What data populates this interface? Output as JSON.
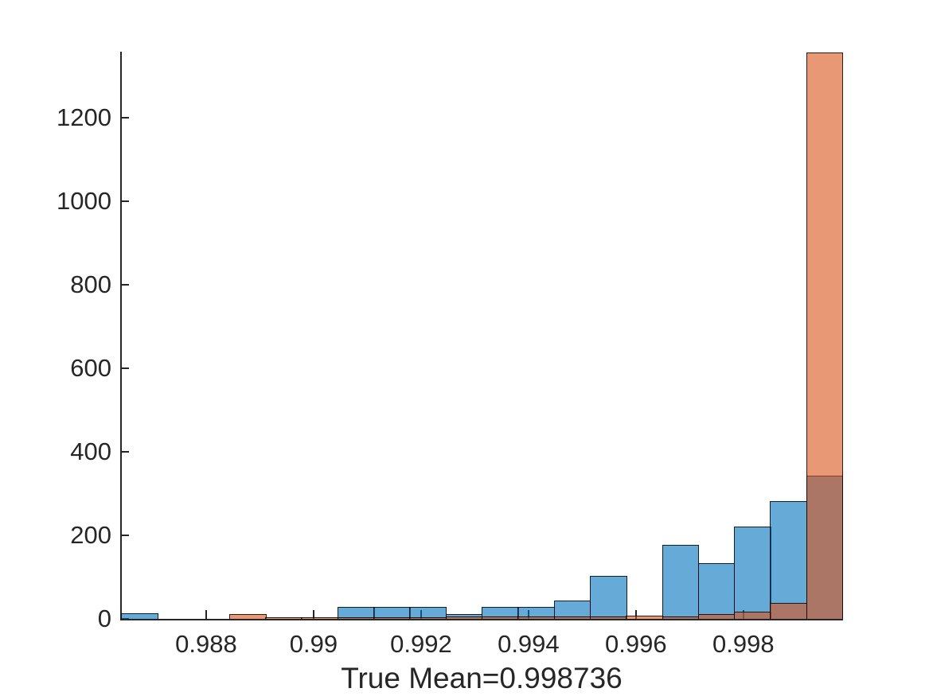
{
  "figure": {
    "background": "#ffffff",
    "axis_color": "#262626",
    "bar_edge_color": "rgba(0,0,0,0.82)"
  },
  "chart_data": {
    "type": "histogram",
    "subtype": "two overlaid semi-transparent histograms (MATLAB style)",
    "title": "",
    "xlabel": "True Mean=0.998736",
    "ylabel": "",
    "legend": "none",
    "grid": false,
    "xlim": [
      0.986415,
      0.99984
    ],
    "ylim": [
      0,
      1358
    ],
    "xticks": [
      0.988,
      0.99,
      0.992,
      0.994,
      0.996,
      0.998
    ],
    "xtick_labels": [
      "0.988",
      "0.99",
      "0.992",
      "0.994",
      "0.996",
      "0.998"
    ],
    "yticks": [
      0,
      200,
      400,
      600,
      800,
      1000,
      1200
    ],
    "ytick_labels": [
      "0",
      "200",
      "400",
      "600",
      "800",
      "1000",
      "1200"
    ],
    "bin_edges": [
      0.986415,
      0.987086,
      0.987758,
      0.988429,
      0.9891,
      0.989771,
      0.990443,
      0.991114,
      0.991785,
      0.992456,
      0.993128,
      0.993799,
      0.99447,
      0.995141,
      0.995813,
      0.996484,
      0.997155,
      0.997826,
      0.998498,
      0.999169,
      0.99984
    ],
    "series": [
      {
        "id": "blue-histogram",
        "fill": "rgba(0,114,189,0.6)",
        "fill_flat_hex": "#66AAD7",
        "counts": [
          13,
          0,
          0,
          0,
          0,
          0,
          29,
          29,
          29,
          11,
          29,
          28,
          43,
          103,
          0,
          178,
          133,
          221,
          282,
          343
        ]
      },
      {
        "id": "orange-histogram",
        "fill": "rgba(217,83,25,0.6)",
        "fill_flat_hex": "#E89875",
        "counts": [
          0,
          0,
          0,
          11,
          4,
          3,
          4,
          4,
          4,
          5,
          5,
          5,
          5,
          5,
          8,
          6,
          11,
          17,
          38,
          1356
        ]
      }
    ],
    "overlap_flat_hex": "#AB7665"
  }
}
